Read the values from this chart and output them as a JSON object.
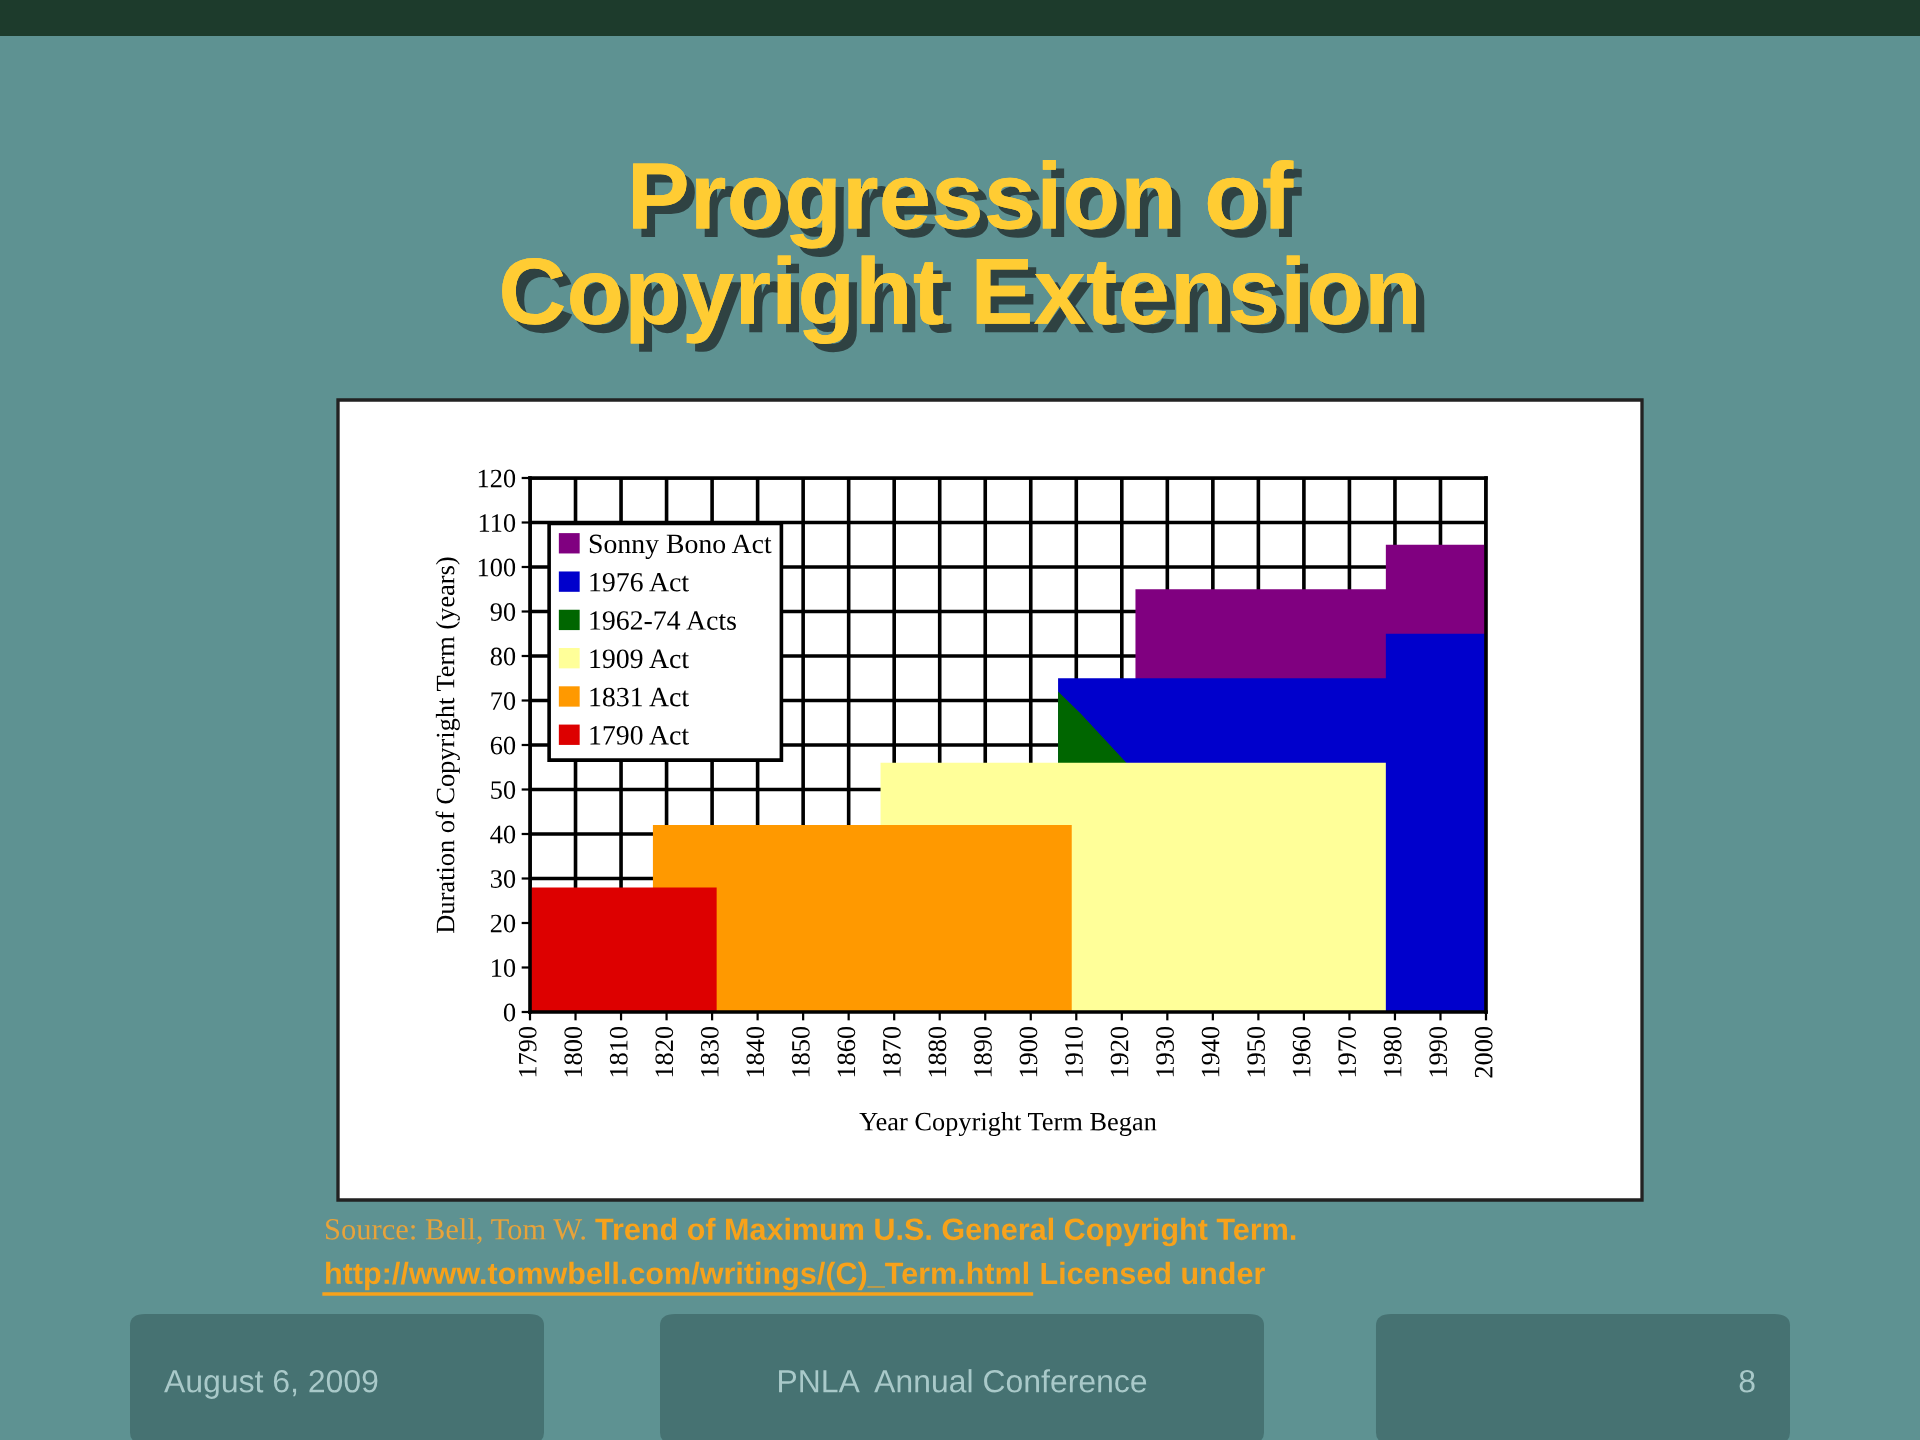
{
  "chart_data": {
    "type": "area",
    "title": "Progression of\nCopyright Extension",
    "xlabel": "Year Copyright Term Began",
    "ylabel": "Duration of Copyright Term (years)",
    "series": [
      {
        "name": "Sonny Bono Act",
        "color": "#800080",
        "x": [
          1923,
          1978,
          1978,
          2000
        ],
        "values": [
          95,
          95,
          105,
          105
        ]
      },
      {
        "name": "1976 Act",
        "color": "#0000cc",
        "x": [
          1906,
          1978,
          1978,
          2000
        ],
        "values": [
          75,
          75,
          85,
          85
        ]
      },
      {
        "name": "1962-74 Acts",
        "color": "#006600",
        "x": [
          1906,
          1911,
          1921
        ],
        "values": [
          72,
          67,
          56
        ]
      },
      {
        "name": "1909 Act",
        "color": "#ffff99",
        "x": [
          1867,
          1978
        ],
        "values": [
          56,
          56
        ]
      },
      {
        "name": "1831 Act",
        "color": "#ff9900",
        "x": [
          1817,
          1909
        ],
        "values": [
          42,
          42
        ]
      },
      {
        "name": "1790 Act",
        "color": "#dd0000",
        "x": [
          1790,
          1831
        ],
        "values": [
          28,
          28
        ]
      }
    ],
    "xlim": [
      1790,
      2000
    ],
    "xticks": [
      1790,
      1800,
      1810,
      1820,
      1830,
      1840,
      1850,
      1860,
      1870,
      1880,
      1890,
      1900,
      1910,
      1920,
      1930,
      1940,
      1950,
      1960,
      1970,
      1980,
      1990,
      2000
    ],
    "ylim": [
      0,
      120
    ],
    "yticks": [
      0,
      10,
      20,
      30,
      40,
      50,
      60,
      70,
      80,
      90,
      100,
      110,
      120
    ],
    "grid": true,
    "legend": "top left",
    "annotations": [
      "Source: Bell, Tom W.",
      "Trend of Maximum U.S. General Copyright Term.",
      "http://www.tomwbell.com/writings/(C)_Term.html",
      "Licensed under",
      "August 6, 2009",
      "PNLA  Annual Conference",
      "8"
    ]
  }
}
